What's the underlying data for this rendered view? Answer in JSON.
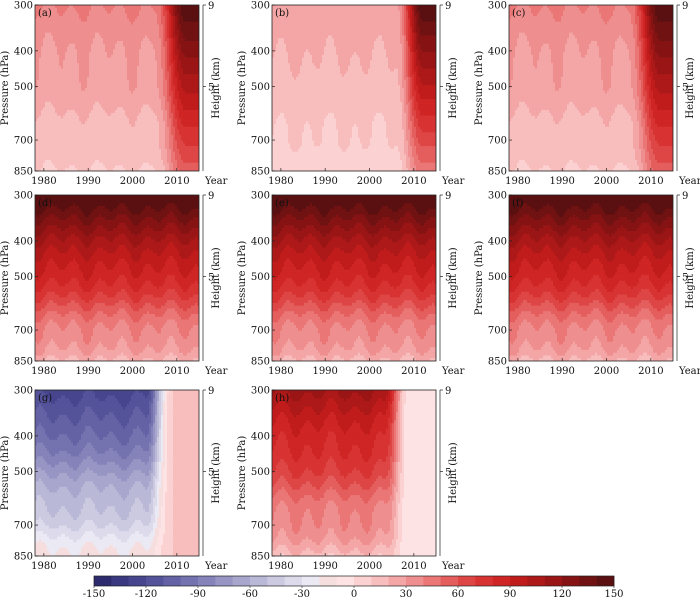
{
  "chart_data": {
    "type": "contour",
    "title": "",
    "xlabel": "Year",
    "ylabel_left": "Pressure (hPa)",
    "ylabel_right": "Height (km)",
    "x_ticks": [
      1980,
      1990,
      2000,
      2010
    ],
    "x_range": [
      1978,
      2015
    ],
    "pressure_ticks": [
      300,
      400,
      500,
      700,
      850
    ],
    "pressure_range": [
      300,
      850
    ],
    "height_ticks": [
      9,
      5
    ],
    "height_tick_pressure": [
      300,
      500
    ],
    "colorbar": {
      "levels": [
        -150,
        -140,
        -130,
        -120,
        -110,
        -100,
        -90,
        -80,
        -70,
        -60,
        -50,
        -40,
        -30,
        -20,
        -10,
        0,
        10,
        20,
        30,
        40,
        50,
        60,
        70,
        80,
        90,
        100,
        110,
        120,
        130,
        140,
        150
      ],
      "tick_labels": [
        "-150",
        "-120",
        "-90",
        "-60",
        "-30",
        "0",
        "30",
        "60",
        "90",
        "120",
        "150"
      ],
      "tick_values": [
        -150,
        -120,
        -90,
        -60,
        -30,
        0,
        30,
        60,
        90,
        120,
        150
      ],
      "colors": [
        "#2d2a6e",
        "#3a3880",
        "#46458e",
        "#54539a",
        "#6462a5",
        "#7472af",
        "#8583b9",
        "#9795c3",
        "#a8a6cd",
        "#bab8d7",
        "#cccae1",
        "#dcdaeb",
        "#eae9f4",
        "#f6dede",
        "#fde3e3",
        "#fbd1d1",
        "#f8bdbd",
        "#f4a6a6",
        "#ef8e8e",
        "#ea7676",
        "#e45e5e",
        "#de4646",
        "#d83333",
        "#cf2525",
        "#c01c1c",
        "#ad1818",
        "#9a1515",
        "#861313",
        "#701212",
        "#5a1010"
      ]
    },
    "panels": [
      {
        "label": "(a)",
        "mode": "late-red",
        "description_levels": {
          "early_surface": 10,
          "early_top": 40,
          "late_peak_top": 150,
          "late_peak_bottom": 60
        }
      },
      {
        "label": "(b)",
        "mode": "late-red-light",
        "description_levels": {
          "early_surface": 5,
          "early_top": 25,
          "late_peak_top": 150,
          "late_peak_bottom": 50
        }
      },
      {
        "label": "(c)",
        "mode": "late-red",
        "description_levels": {
          "early_surface": 10,
          "early_top": 40,
          "late_peak_top": 150,
          "late_peak_bottom": 55
        }
      },
      {
        "label": "(d)",
        "mode": "vertical-red",
        "description_levels": {
          "surface": 20,
          "top": 150
        }
      },
      {
        "label": "(e)",
        "mode": "vertical-red",
        "description_levels": {
          "surface": 15,
          "top": 130
        }
      },
      {
        "label": "(f)",
        "mode": "vertical-red",
        "description_levels": {
          "surface": 20,
          "top": 150
        }
      },
      {
        "label": "(g)",
        "mode": "blue-to-pink",
        "description_levels": {
          "early_surface": -20,
          "early_top": -120,
          "late": 10
        }
      },
      {
        "label": "(h)",
        "mode": "red-to-lavender",
        "description_levels": {
          "early_surface": 20,
          "early_top": 110,
          "late": -10
        }
      }
    ]
  }
}
